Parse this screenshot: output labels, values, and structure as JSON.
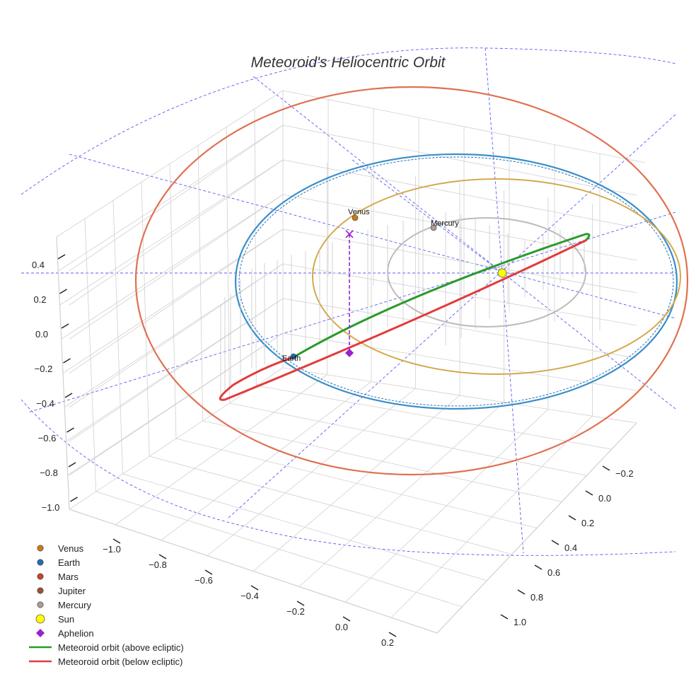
{
  "chart_data": {
    "type": "scatter3d",
    "title": "Meteoroid's Heliocentric Orbit",
    "axes": {
      "x": {
        "ticks": [
          "−1.0",
          "−0.8",
          "−0.6",
          "−0.4",
          "−0.2",
          "0.0",
          "0.2"
        ]
      },
      "y": {
        "ticks": [
          "−0.2",
          "0.0",
          "0.2",
          "0.4",
          "0.6",
          "0.8",
          "1.0"
        ]
      },
      "z": {
        "ticks": [
          "0.4",
          "0.2",
          "0.0",
          "−0.2",
          "−0.4",
          "−0.6",
          "−0.8",
          "−1.0"
        ]
      }
    },
    "planet_labels": [
      "Venus",
      "Mercury",
      "Earth"
    ],
    "legend": [
      {
        "name": "Venus",
        "color": "#c87a1e",
        "marker": "dot"
      },
      {
        "name": "Earth",
        "color": "#1f6fb4",
        "marker": "dot"
      },
      {
        "name": "Mars",
        "color": "#cc4422",
        "marker": "dot"
      },
      {
        "name": "Jupiter",
        "color": "#9a5533",
        "marker": "dot"
      },
      {
        "name": "Mercury",
        "color": "#b09a94",
        "marker": "dot"
      },
      {
        "name": "Sun",
        "color": "#ffff00",
        "marker": "big-dot"
      },
      {
        "name": "Aphelion",
        "color": "#9922cc",
        "marker": "diamond"
      },
      {
        "name": "Meteoroid orbit (above ecliptic)",
        "color": "#2a9a2a",
        "marker": "line"
      },
      {
        "name": "Meteoroid orbit (below ecliptic)",
        "color": "#e23b3b",
        "marker": "line"
      }
    ],
    "colors": {
      "mars_orbit": "#e07050",
      "earth_orbit": "#3a8ec8",
      "venus_orbit": "#d4a84a",
      "mercury_orbit": "#bbbbbb",
      "guides": "#5a5af0",
      "grid": "#d0d0d0"
    }
  }
}
